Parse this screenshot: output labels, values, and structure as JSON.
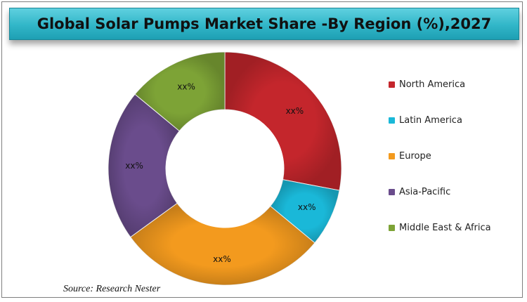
{
  "chart_data": {
    "type": "pie",
    "variant": "donut",
    "title": "Global Solar Pumps Market Share -By Region (%),2027",
    "categories": [
      "North America",
      "Latin America",
      "Europe",
      "Asia-Pacific",
      "Middle East & Africa"
    ],
    "values": [
      28,
      8,
      29,
      21,
      14
    ],
    "data_labels": [
      "xx%",
      "xx%",
      "xx%",
      "xx%",
      "xx%"
    ],
    "colors": [
      "#c4262c",
      "#1ab8d8",
      "#f39a1e",
      "#6a4c8c",
      "#7da336"
    ],
    "legend_position": "right"
  },
  "source": "Source: Research Nester"
}
